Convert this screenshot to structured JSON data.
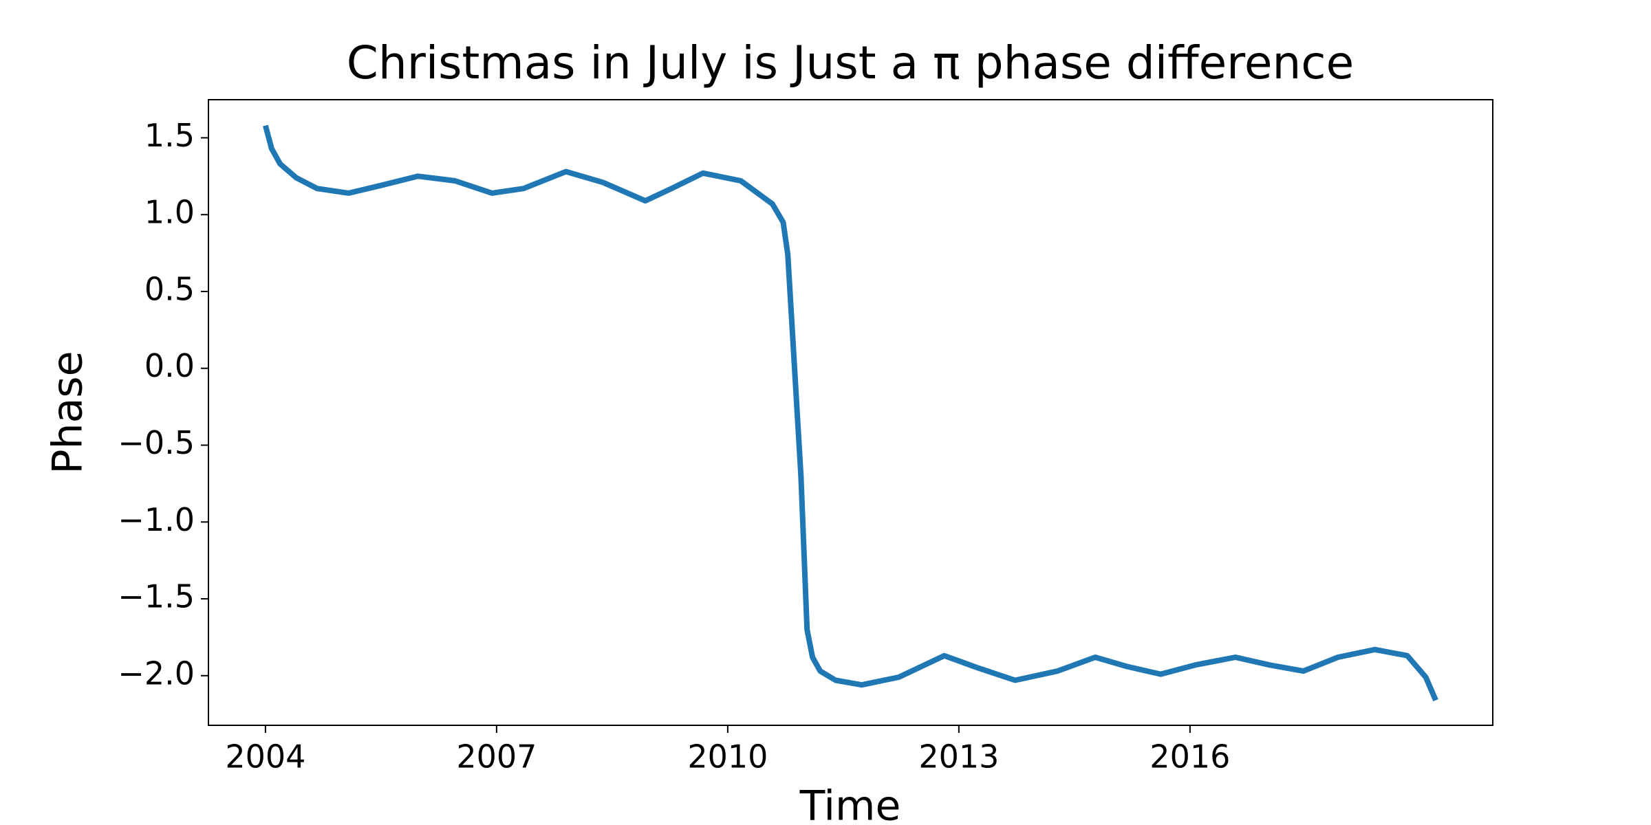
{
  "chart_data": {
    "type": "line",
    "title": "Christmas in July is Just a π phase difference",
    "x_label": "Time",
    "y_label": "Phase",
    "x": [
      2004.0,
      2004.08,
      2004.19,
      2004.4,
      2004.67,
      2005.08,
      2005.5,
      2005.98,
      2006.46,
      2006.94,
      2007.35,
      2007.9,
      2008.38,
      2008.93,
      2009.27,
      2009.68,
      2010.17,
      2010.58,
      2010.72,
      2010.78,
      2010.95,
      2011.03,
      2011.1,
      2011.2,
      2011.4,
      2011.74,
      2012.22,
      2012.81,
      2013.25,
      2013.73,
      2014.28,
      2014.77,
      2015.18,
      2015.62,
      2016.07,
      2016.59,
      2017.03,
      2017.47,
      2017.92,
      2018.4,
      2018.82,
      2019.06,
      2019.19
    ],
    "series": [
      {
        "name": "Phase",
        "color": "#1f77b4",
        "values": [
          1.58,
          1.43,
          1.33,
          1.24,
          1.17,
          1.14,
          1.19,
          1.25,
          1.22,
          1.14,
          1.17,
          1.28,
          1.21,
          1.09,
          1.17,
          1.27,
          1.22,
          1.07,
          0.95,
          0.74,
          -0.7,
          -1.7,
          -1.88,
          -1.97,
          -2.03,
          -2.06,
          -2.01,
          -1.87,
          -1.95,
          -2.03,
          -1.97,
          -1.88,
          -1.94,
          -1.99,
          -1.93,
          -1.88,
          -1.93,
          -1.97,
          -1.88,
          -1.83,
          -1.87,
          -2.01,
          -2.16
        ]
      }
    ],
    "xlim": [
      2003.26,
      2019.93
    ],
    "ylim": [
      -2.323,
      1.748
    ],
    "xticks": [
      2004,
      2007,
      2010,
      2013,
      2016
    ],
    "yticks": [
      1.5,
      {
        "value": 1.0,
        "label": "1.0"
      },
      0.5,
      {
        "value": 0.0,
        "label": "0.0"
      },
      {
        "value": -0.5,
        "label": "−0.5"
      },
      {
        "value": -1.0,
        "label": "−1.0"
      },
      {
        "value": -1.5,
        "label": "−1.5"
      },
      {
        "value": -2.0,
        "label": "−2.0"
      }
    ],
    "grid": false
  }
}
